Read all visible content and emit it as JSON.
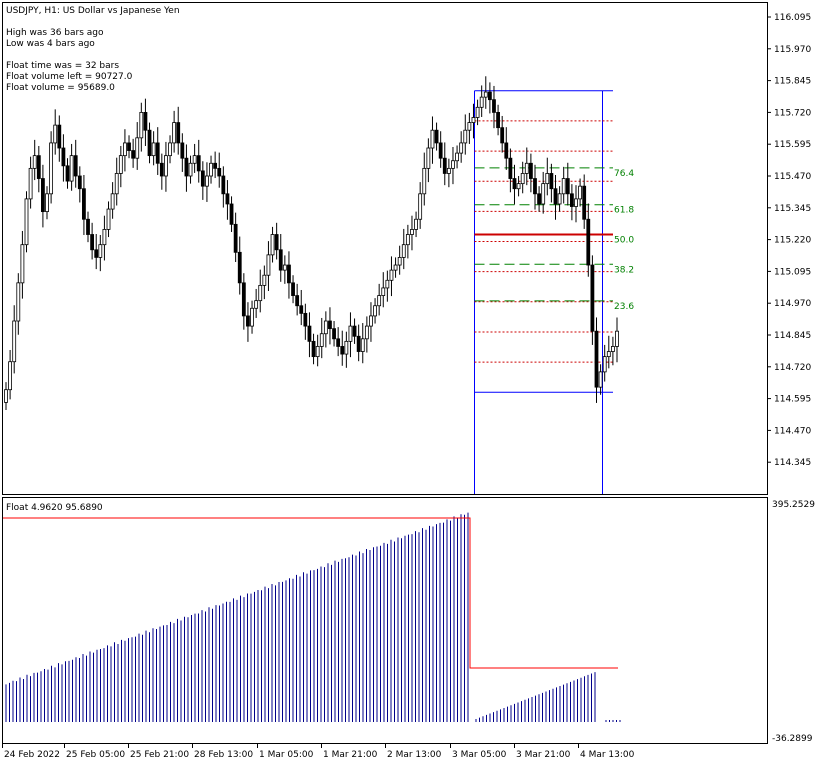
{
  "header": {
    "title": "USDJPY, H1:  US Dollar vs Japanese Yen",
    "info_lines": [
      "High was   36  bars ago",
      "Low was     4 bars ago",
      "",
      "Float time was       = 32 bars",
      "Float volume left = 90727.0",
      "Float volume        = 95689.0"
    ]
  },
  "colors": {
    "background": "#ffffff",
    "frame": "#000000",
    "candles": "#000000",
    "range_box": "#0000ff",
    "red_dotted": "#cc0000",
    "fib_dashed": "#008000",
    "fib_50": "#cc0000",
    "histogram": "#00008b",
    "float_line": "#ff0000"
  },
  "price_axis": {
    "labels": [
      "116.095",
      "115.970",
      "115.845",
      "115.720",
      "115.595",
      "115.470",
      "115.345",
      "115.220",
      "115.095",
      "114.970",
      "114.845",
      "114.720",
      "114.595",
      "114.470",
      "114.345"
    ]
  },
  "time_axis": {
    "labels": [
      "24 Feb 2022",
      "25 Feb 05:00",
      "25 Feb 21:00",
      "28 Feb 13:00",
      "1 Mar 05:00",
      "1 Mar 21:00",
      "2 Mar 13:00",
      "3 Mar 05:00",
      "3 Mar 21:00",
      "4 Mar 13:00"
    ]
  },
  "fib_levels": [
    {
      "label": "76.4",
      "price": 115.502
    },
    {
      "label": "61.8",
      "price": 115.357
    },
    {
      "label": "50.0",
      "price": 115.24
    },
    {
      "label": "38.2",
      "price": 115.123
    },
    {
      "label": "23.6",
      "price": 114.979
    }
  ],
  "range": {
    "high": 115.805,
    "low": 114.62
  },
  "indicator": {
    "label": "Float 4.9620 95.6890",
    "top_value": "395.2529",
    "bottom_value": "-36.2899"
  },
  "chart_data": {
    "type": "candlestick",
    "symbol": "USDJPY",
    "timeframe": "H1",
    "ylim": [
      114.22,
      116.12
    ],
    "close_series": [
      114.63,
      114.74,
      114.9,
      115.05,
      115.2,
      115.38,
      115.5,
      115.55,
      115.46,
      115.33,
      115.4,
      115.6,
      115.67,
      115.58,
      115.51,
      115.45,
      115.55,
      115.47,
      115.42,
      115.3,
      115.24,
      115.18,
      115.15,
      115.2,
      115.26,
      115.34,
      115.4,
      115.48,
      115.55,
      115.6,
      115.57,
      115.54,
      115.62,
      115.72,
      115.65,
      115.55,
      115.6,
      115.52,
      115.47,
      115.55,
      115.6,
      115.68,
      115.6,
      115.54,
      115.47,
      115.52,
      115.55,
      115.49,
      115.43,
      115.47,
      115.52,
      115.5,
      115.47,
      115.4,
      115.36,
      115.28,
      115.17,
      115.05,
      114.92,
      114.88,
      114.95,
      114.98,
      115.04,
      115.08,
      115.16,
      115.24,
      115.18,
      115.1,
      115.12,
      115.05,
      115.0,
      114.96,
      114.93,
      114.88,
      114.82,
      114.76,
      114.8,
      114.85,
      114.9,
      114.87,
      114.83,
      114.8,
      114.77,
      114.82,
      114.88,
      114.84,
      114.78,
      114.83,
      114.88,
      114.92,
      114.96,
      115.0,
      115.03,
      115.06,
      115.1,
      115.12,
      115.15,
      115.2,
      115.24,
      115.26,
      115.3,
      115.4,
      115.5,
      115.58,
      115.65,
      115.6,
      115.54,
      115.48,
      115.5,
      115.53,
      115.56,
      115.6,
      115.65,
      115.68,
      115.7,
      115.74,
      115.78,
      115.8,
      115.77,
      115.72,
      115.66,
      115.6,
      115.54,
      115.46,
      115.42,
      115.44,
      115.48,
      115.52,
      115.46,
      115.4,
      115.36,
      115.44,
      115.48,
      115.42,
      115.36,
      115.4,
      115.46,
      115.4,
      115.35,
      115.38,
      115.43,
      115.3,
      115.12,
      114.86,
      114.64,
      114.7,
      114.76,
      114.78,
      114.8,
      114.86
    ]
  }
}
